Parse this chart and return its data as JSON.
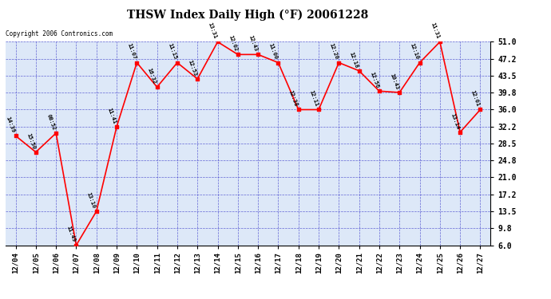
{
  "title": "THSW Index Daily High (°F) 20061228",
  "copyright": "Copyright 2006 Contronics.com",
  "outer_bg": "#ffffff",
  "plot_bg_color": "#dde8f8",
  "line_color": "red",
  "marker_color": "red",
  "grid_color": "#4444cc",
  "x_labels": [
    "12/04",
    "12/05",
    "12/06",
    "12/07",
    "12/08",
    "12/09",
    "12/10",
    "12/11",
    "12/12",
    "12/13",
    "12/14",
    "12/15",
    "12/16",
    "12/17",
    "12/18",
    "12/19",
    "12/20",
    "12/21",
    "12/22",
    "12/23",
    "12/24",
    "12/25",
    "12/26",
    "12/27"
  ],
  "y_values": [
    30.2,
    26.6,
    30.8,
    6.0,
    13.5,
    32.2,
    46.4,
    41.0,
    46.4,
    42.8,
    51.0,
    48.2,
    48.2,
    46.4,
    36.0,
    36.0,
    46.4,
    44.6,
    40.1,
    39.8,
    46.4,
    51.0,
    31.0,
    36.0
  ],
  "time_labels": [
    "14:39",
    "15:50",
    "08:52",
    "11:49",
    "13:10",
    "11:41",
    "11:07",
    "16:32",
    "11:15",
    "12:53",
    "13:31",
    "12:02",
    "12:43",
    "11:00",
    "12:38",
    "12:11",
    "12:20",
    "12:18",
    "12:56",
    "10:43",
    "12:10",
    "11:31",
    "13:14",
    "12:01"
  ],
  "y_ticks": [
    6.0,
    9.8,
    13.5,
    17.2,
    21.0,
    24.8,
    28.5,
    32.2,
    36.0,
    39.8,
    43.5,
    47.2,
    51.0
  ],
  "y_tick_labels": [
    "6.0",
    "9.8",
    "13.5",
    "17.2",
    "21.0",
    "24.8",
    "28.5",
    "32.2",
    "36.0",
    "39.8",
    "43.5",
    "47.2",
    "51.0"
  ],
  "ylim": [
    6.0,
    51.0
  ],
  "x_indices": [
    0,
    1,
    2,
    3,
    4,
    5,
    6,
    7,
    8,
    9,
    10,
    11,
    12,
    13,
    14,
    15,
    16,
    17,
    18,
    19,
    20,
    21,
    22,
    23
  ],
  "figwidth": 6.9,
  "figheight": 3.75,
  "dpi": 100
}
